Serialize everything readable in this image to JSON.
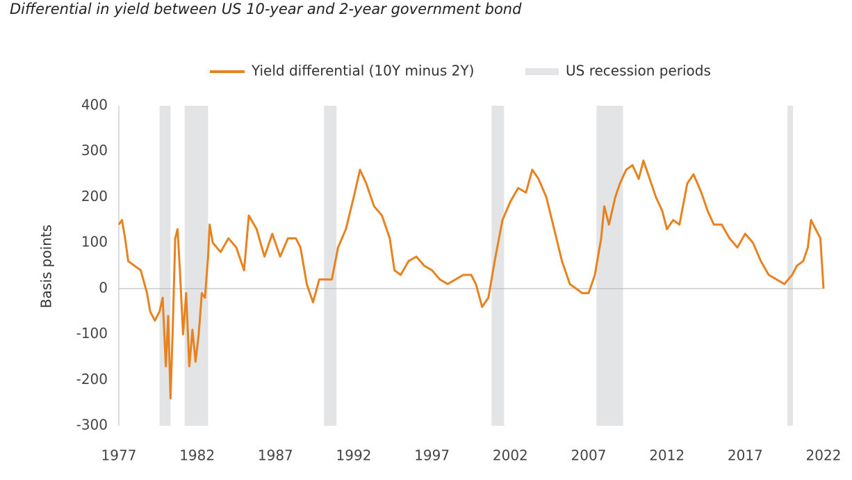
{
  "chart_data": {
    "type": "line",
    "title": "Differential in yield between US 10-year and 2-year government bond",
    "y_label": "Basis points",
    "xlim": [
      1977,
      2022
    ],
    "xticks": [
      1977,
      1982,
      1987,
      1992,
      1997,
      2002,
      2007,
      2012,
      2017,
      2022
    ],
    "ylim": [
      -300,
      400
    ],
    "yticks": [
      -300,
      -200,
      -100,
      0,
      100,
      200,
      300,
      400
    ],
    "recessions": {
      "name": "US recession periods",
      "color": "#e3e4e6",
      "periods": [
        [
          1979.6,
          1980.3
        ],
        [
          1981.2,
          1982.7
        ],
        [
          1990.1,
          1990.9
        ],
        [
          2000.8,
          2001.6
        ],
        [
          2007.5,
          2009.2
        ],
        [
          2019.7,
          2020.05
        ]
      ]
    },
    "series": [
      {
        "name": "Yield differential (10Y minus 2Y)",
        "color": "#e8821e",
        "x": [
          1977.0,
          1977.2,
          1977.4,
          1977.6,
          1978.0,
          1978.4,
          1978.8,
          1979.0,
          1979.3,
          1979.6,
          1979.8,
          1980.0,
          1980.15,
          1980.3,
          1980.45,
          1980.6,
          1980.75,
          1980.9,
          1981.1,
          1981.3,
          1981.5,
          1981.7,
          1981.9,
          1982.1,
          1982.3,
          1982.5,
          1982.7,
          1982.8,
          1983.0,
          1983.5,
          1984.0,
          1984.5,
          1985.0,
          1985.3,
          1985.8,
          1986.3,
          1986.8,
          1987.3,
          1987.8,
          1988.3,
          1988.6,
          1989.0,
          1989.4,
          1989.8,
          1990.2,
          1990.6,
          1991.0,
          1991.5,
          1992.0,
          1992.4,
          1992.8,
          1993.3,
          1993.8,
          1994.3,
          1994.6,
          1995.0,
          1995.5,
          1996.0,
          1996.5,
          1997.0,
          1997.5,
          1998.0,
          1998.5,
          1999.0,
          1999.5,
          1999.8,
          2000.2,
          2000.6,
          2001.0,
          2001.5,
          2002.0,
          2002.5,
          2003.0,
          2003.4,
          2003.8,
          2004.3,
          2004.8,
          2005.3,
          2005.8,
          2006.2,
          2006.6,
          2007.0,
          2007.4,
          2007.8,
          2008.0,
          2008.3,
          2008.7,
          2009.0,
          2009.4,
          2009.8,
          2010.2,
          2010.5,
          2010.9,
          2011.3,
          2011.7,
          2012.0,
          2012.4,
          2012.8,
          2013.3,
          2013.7,
          2014.2,
          2014.6,
          2015.0,
          2015.5,
          2016.0,
          2016.5,
          2017.0,
          2017.5,
          2018.0,
          2018.5,
          2019.0,
          2019.5,
          2020.0,
          2020.3,
          2020.7,
          2021.0,
          2021.2,
          2021.5,
          2021.8,
          2022.0
        ],
        "values": [
          140,
          150,
          110,
          60,
          50,
          40,
          -10,
          -50,
          -70,
          -50,
          -20,
          -170,
          -60,
          -240,
          -80,
          110,
          130,
          40,
          -100,
          -10,
          -170,
          -90,
          -160,
          -100,
          -10,
          -20,
          70,
          140,
          100,
          80,
          110,
          90,
          40,
          160,
          130,
          70,
          120,
          70,
          110,
          110,
          90,
          10,
          -30,
          20,
          20,
          20,
          90,
          130,
          200,
          260,
          230,
          180,
          160,
          110,
          40,
          30,
          60,
          70,
          50,
          40,
          20,
          10,
          20,
          30,
          30,
          10,
          -40,
          -20,
          60,
          150,
          190,
          220,
          210,
          260,
          240,
          200,
          130,
          60,
          10,
          0,
          -10,
          -10,
          30,
          110,
          180,
          140,
          200,
          230,
          260,
          270,
          240,
          280,
          240,
          200,
          170,
          130,
          150,
          140,
          230,
          250,
          210,
          170,
          140,
          140,
          110,
          90,
          120,
          100,
          60,
          30,
          20,
          10,
          30,
          50,
          60,
          90,
          150,
          130,
          110,
          0
        ]
      }
    ]
  }
}
